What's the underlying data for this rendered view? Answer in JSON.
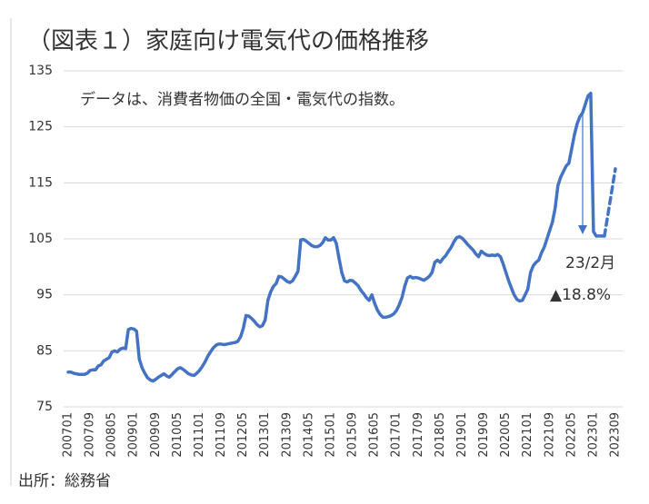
{
  "chart_data": {
    "type": "line",
    "title": "（図表１）家庭向け電気代の価格推移",
    "note": "データは、消費者物価の全国・電気代の指数。",
    "annotations": [
      "23/2月",
      "▲18.8%"
    ],
    "source": "出所：総務省",
    "categories": [
      "200701",
      null,
      null,
      null,
      null,
      null,
      null,
      null,
      "200709",
      null,
      null,
      null,
      null,
      null,
      null,
      null,
      "200805",
      null,
      null,
      null,
      null,
      null,
      null,
      null,
      "200901",
      null,
      null,
      null,
      null,
      null,
      null,
      null,
      "200909",
      null,
      null,
      null,
      null,
      null,
      null,
      null,
      "201005",
      null,
      null,
      null,
      null,
      null,
      null,
      null,
      "201101",
      null,
      null,
      null,
      null,
      null,
      null,
      null,
      "201109",
      null,
      null,
      null,
      null,
      null,
      null,
      null,
      "201205",
      null,
      null,
      null,
      null,
      null,
      null,
      null,
      "201301",
      null,
      null,
      null,
      null,
      null,
      null,
      null,
      "201309",
      null,
      null,
      null,
      null,
      null,
      null,
      null,
      "201405",
      null,
      null,
      null,
      null,
      null,
      null,
      null,
      "201501",
      null,
      null,
      null,
      null,
      null,
      null,
      null,
      "201509",
      null,
      null,
      null,
      null,
      null,
      null,
      null,
      "201605",
      null,
      null,
      null,
      null,
      null,
      null,
      null,
      "201701",
      null,
      null,
      null,
      null,
      null,
      null,
      null,
      "201709",
      null,
      null,
      null,
      null,
      null,
      null,
      null,
      "201805",
      null,
      null,
      null,
      null,
      null,
      null,
      null,
      "201901",
      null,
      null,
      null,
      null,
      null,
      null,
      null,
      "201909",
      null,
      null,
      null,
      null,
      null,
      null,
      null,
      "202005",
      null,
      null,
      null,
      null,
      null,
      null,
      null,
      "202101",
      null,
      null,
      null,
      null,
      null,
      null,
      null,
      "202109",
      null,
      null,
      null,
      null,
      null,
      null,
      null,
      "202205",
      null,
      null,
      null,
      null,
      null,
      null,
      null,
      "202301",
      null,
      null,
      null,
      null,
      null,
      null,
      null,
      "202309"
    ],
    "series": [
      {
        "color": "#4472c4",
        "dashed": false,
        "values": [
          81.2,
          81.2,
          81.0,
          80.9,
          80.8,
          80.8,
          80.8,
          81.0,
          81.5,
          81.6,
          81.6,
          82.3,
          82.5,
          83.2,
          83.5,
          83.8,
          84.8,
          85.0,
          84.8,
          85.3,
          85.5,
          85.4,
          88.8,
          89.0,
          88.9,
          88.5,
          83.5,
          82.0,
          81.0,
          80.2,
          79.8,
          79.6,
          79.9,
          80.3,
          80.6,
          80.9,
          80.5,
          80.3,
          80.8,
          81.3,
          81.8,
          82.0,
          81.7,
          81.3,
          80.9,
          80.7,
          80.6,
          81.0,
          81.5,
          82.2,
          83.0,
          84.0,
          84.8,
          85.5,
          86.0,
          86.2,
          86.2,
          86.1,
          86.2,
          86.3,
          86.4,
          86.5,
          86.7,
          87.5,
          89.0,
          91.3,
          91.2,
          90.8,
          90.3,
          89.7,
          89.3,
          89.5,
          90.5,
          94.0,
          95.5,
          96.5,
          97.0,
          98.3,
          98.2,
          97.8,
          97.4,
          97.2,
          97.5,
          98.3,
          99.2,
          104.8,
          104.9,
          104.6,
          104.2,
          103.8,
          103.6,
          103.6,
          103.8,
          104.3,
          105.2,
          104.8,
          104.8,
          105.2,
          104.2,
          101.5,
          99.0,
          97.5,
          97.3,
          97.6,
          97.5,
          97.1,
          96.6,
          95.8,
          95.2,
          94.5,
          94.0,
          95.0,
          93.5,
          92.3,
          91.5,
          91.0,
          91.0,
          91.1,
          91.3,
          91.6,
          92.2,
          93.2,
          94.5,
          96.5,
          98.0,
          98.3,
          98.0,
          98.1,
          98.0,
          97.8,
          97.6,
          97.9,
          98.3,
          99.0,
          100.8,
          101.2,
          100.8,
          101.5,
          102.0,
          102.8,
          103.5,
          104.5,
          105.2,
          105.4,
          105.1,
          104.6,
          104.0,
          103.5,
          103.0,
          102.3,
          101.8,
          102.8,
          102.4,
          102.1,
          102.0,
          102.1,
          102.0,
          102.2,
          101.8,
          100.5,
          99.0,
          97.5,
          96.2,
          95.0,
          94.2,
          93.9,
          94.0,
          95.0,
          96.0,
          99.0,
          100.2,
          100.8,
          101.2,
          102.5,
          103.5,
          105.0,
          106.5,
          108.0,
          110.5,
          114.5,
          116.0,
          117.0,
          118.0,
          118.5,
          121.0,
          123.5,
          125.5,
          126.8,
          127.5,
          129.0,
          130.5,
          131.0,
          106.3,
          105.5,
          105.5,
          105.5,
          105.5,
          null,
          null,
          null,
          null
        ]
      },
      {
        "color": "#4472c4",
        "dashed": true,
        "values": [
          null,
          null,
          null,
          null,
          null,
          null,
          null,
          null,
          null,
          null,
          null,
          null,
          null,
          null,
          null,
          null,
          null,
          null,
          null,
          null,
          null,
          null,
          null,
          null,
          null,
          null,
          null,
          null,
          null,
          null,
          null,
          null,
          null,
          null,
          null,
          null,
          null,
          null,
          null,
          null,
          null,
          null,
          null,
          null,
          null,
          null,
          null,
          null,
          null,
          null,
          null,
          null,
          null,
          null,
          null,
          null,
          null,
          null,
          null,
          null,
          null,
          null,
          null,
          null,
          null,
          null,
          null,
          null,
          null,
          null,
          null,
          null,
          null,
          null,
          null,
          null,
          null,
          null,
          null,
          null,
          null,
          null,
          null,
          null,
          null,
          null,
          null,
          null,
          null,
          null,
          null,
          null,
          null,
          null,
          null,
          null,
          null,
          null,
          null,
          null,
          null,
          null,
          null,
          null,
          null,
          null,
          null,
          null,
          null,
          null,
          null,
          null,
          null,
          null,
          null,
          null,
          null,
          null,
          null,
          null,
          null,
          null,
          null,
          null,
          null,
          null,
          null,
          null,
          null,
          null,
          null,
          null,
          null,
          null,
          null,
          null,
          null,
          null,
          null,
          null,
          null,
          null,
          null,
          null,
          null,
          null,
          null,
          null,
          null,
          null,
          null,
          null,
          null,
          null,
          null,
          null,
          null,
          null,
          null,
          null,
          null,
          null,
          null,
          null,
          null,
          null,
          null,
          null,
          null,
          null,
          null,
          null,
          null,
          null,
          null,
          null,
          null,
          null,
          null,
          null,
          null,
          null,
          null,
          null,
          null,
          null,
          null,
          null,
          null,
          null,
          null,
          null,
          null,
          null,
          null,
          null,
          105.5,
          108.5,
          111.5,
          114.5,
          117.5
        ]
      }
    ],
    "ylim": [
      75,
      135
    ],
    "yticks": [
      75,
      85,
      95,
      105,
      115,
      125,
      135
    ],
    "grid": true
  }
}
